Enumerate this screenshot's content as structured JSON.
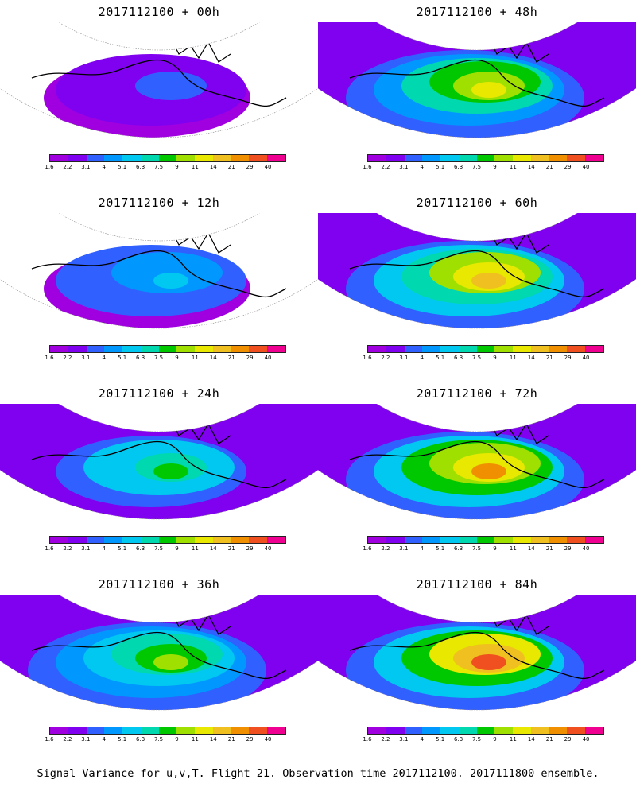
{
  "panels": [
    {
      "title": "2017112100 + 00h",
      "level": 0.15
    },
    {
      "title": "2017112100 + 48h",
      "level": 0.62
    },
    {
      "title": "2017112100 + 12h",
      "level": 0.3
    },
    {
      "title": "2017112100 + 60h",
      "level": 0.7
    },
    {
      "title": "2017112100 + 24h",
      "level": 0.45
    },
    {
      "title": "2017112100 + 72h",
      "level": 0.72
    },
    {
      "title": "2017112100 + 36h",
      "level": 0.55
    },
    {
      "title": "2017112100 + 84h",
      "level": 0.8
    }
  ],
  "colorbar": {
    "colors": [
      "#a000e0",
      "#8000f0",
      "#3060ff",
      "#0098ff",
      "#00c8f0",
      "#00d8b0",
      "#00c800",
      "#a0e000",
      "#e8e800",
      "#f0c020",
      "#f09000",
      "#f05020",
      "#f00090"
    ],
    "labels": [
      "1.6",
      "2.2",
      "3.1",
      "4",
      "5.1",
      "6.3",
      "7.5",
      "9",
      "11",
      "14",
      "21",
      "29",
      "40"
    ]
  },
  "caption": "Signal Variance for u,v,T. Flight 21. Observation time 2017112100. 2017111800 ensemble."
}
